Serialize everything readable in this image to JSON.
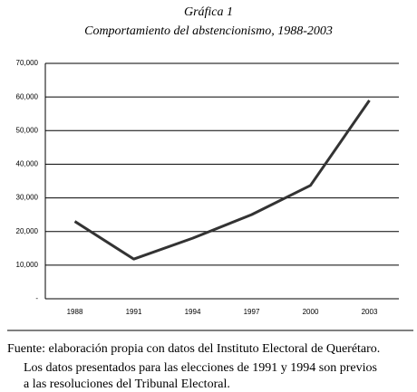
{
  "chart_data": {
    "type": "line",
    "title": "Gráfica 1",
    "subtitle": "Comportamiento del abstencionismo, 1988-2003",
    "categories": [
      "1988",
      "1991",
      "1994",
      "1997",
      "2000",
      "2003"
    ],
    "values": [
      23000,
      11800,
      18000,
      25000,
      33700,
      59000
    ],
    "color": "#333333",
    "ylim": [
      0,
      70000
    ],
    "yticks": [
      {
        "value": 0,
        "label": "-"
      },
      {
        "value": 10000,
        "label": "10,000"
      },
      {
        "value": 20000,
        "label": "20,000"
      },
      {
        "value": 30000,
        "label": "30,000"
      },
      {
        "value": 40000,
        "label": "40,000"
      },
      {
        "value": 50000,
        "label": "50,000"
      },
      {
        "value": 60000,
        "label": "60,000"
      },
      {
        "value": 70000,
        "label": "70,000"
      }
    ],
    "grid": true,
    "notes": [
      "Fuente: elaboración propia con datos del Instituto Electoral de Querétaro.",
      "Los datos presentados para las elecciones de 1991 y 1994 son previos",
      "a las resoluciones del Tribunal Electoral."
    ]
  }
}
